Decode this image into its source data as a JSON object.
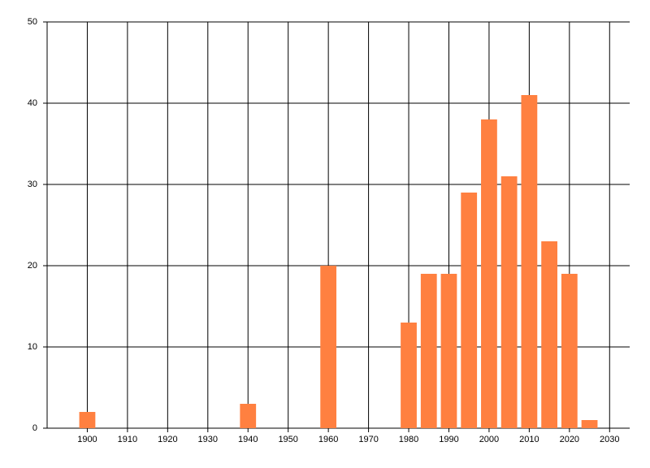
{
  "chart_data": {
    "type": "bar",
    "x": [
      1900,
      1940,
      1960,
      1980,
      1985,
      1990,
      1995,
      2000,
      2005,
      2010,
      2015,
      2020,
      2025
    ],
    "values": [
      2,
      3,
      20,
      13,
      19,
      19,
      29,
      38,
      31,
      41,
      23,
      19,
      1
    ],
    "color": "#ff8040",
    "xlim": [
      1890,
      2035
    ],
    "xticks": [
      1900,
      1910,
      1920,
      1930,
      1940,
      1950,
      1960,
      1970,
      1980,
      1990,
      2000,
      2010,
      2020,
      2030
    ],
    "ylim": [
      0,
      50
    ],
    "yticks": [
      0,
      10,
      20,
      30,
      40,
      50
    ],
    "bar_width": 4,
    "grid": true
  }
}
